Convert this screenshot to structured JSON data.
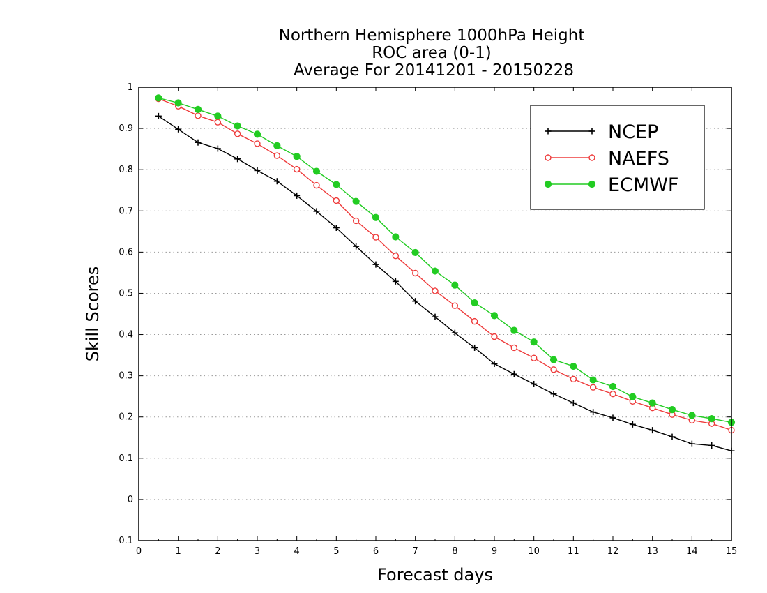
{
  "chart_data": {
    "type": "line",
    "title_lines": [
      "Northern Hemisphere 1000hPa Height",
      "ROC area (0-1)",
      "Average For 20141201 - 20150228"
    ],
    "xlabel": "Forecast days",
    "ylabel": "Skill Scores",
    "xlim": [
      0,
      15
    ],
    "ylim": [
      -0.1,
      1
    ],
    "xticks": [
      "0",
      "1",
      "2",
      "3",
      "4",
      "5",
      "6",
      "7",
      "8",
      "9",
      "10",
      "11",
      "12",
      "13",
      "14",
      "15"
    ],
    "yticks": [
      "-0.1",
      "0",
      "0.1",
      "0.2",
      "0.3",
      "0.4",
      "0.5",
      "0.6",
      "0.7",
      "0.8",
      "0.9",
      "1"
    ],
    "grid": "horizontal dotted",
    "legend_position": "top-right",
    "x": [
      0.5,
      1,
      1.5,
      2,
      2.5,
      3,
      3.5,
      4,
      4.5,
      5,
      5.5,
      6,
      6.5,
      7,
      7.5,
      8,
      8.5,
      9,
      9.5,
      10,
      10.5,
      11,
      11.5,
      12,
      12.5,
      13,
      13.5,
      14,
      14.5,
      15
    ],
    "series": [
      {
        "name": "NCEP",
        "color": "#000000",
        "marker": "plus",
        "values": [
          0.93,
          0.898,
          0.866,
          0.851,
          0.826,
          0.798,
          0.772,
          0.737,
          0.699,
          0.659,
          0.614,
          0.57,
          0.529,
          0.481,
          0.443,
          0.404,
          0.368,
          0.329,
          0.304,
          0.28,
          0.256,
          0.234,
          0.212,
          0.198,
          0.182,
          0.168,
          0.152,
          0.135,
          0.131,
          0.118
        ]
      },
      {
        "name": "NAEFS",
        "color": "#ee3b3b",
        "marker": "open-circle",
        "values": [
          0.972,
          0.954,
          0.931,
          0.915,
          0.887,
          0.863,
          0.834,
          0.801,
          0.762,
          0.725,
          0.676,
          0.636,
          0.591,
          0.549,
          0.506,
          0.47,
          0.432,
          0.395,
          0.368,
          0.343,
          0.315,
          0.292,
          0.272,
          0.256,
          0.238,
          0.222,
          0.206,
          0.192,
          0.184,
          0.168
        ]
      },
      {
        "name": "ECMWF",
        "color": "#22cc22",
        "marker": "filled-circle",
        "values": [
          0.974,
          0.962,
          0.946,
          0.93,
          0.906,
          0.886,
          0.858,
          0.832,
          0.796,
          0.764,
          0.723,
          0.684,
          0.637,
          0.599,
          0.554,
          0.52,
          0.477,
          0.446,
          0.41,
          0.382,
          0.339,
          0.323,
          0.29,
          0.274,
          0.249,
          0.234,
          0.218,
          0.204,
          0.196,
          0.187
        ]
      }
    ]
  }
}
